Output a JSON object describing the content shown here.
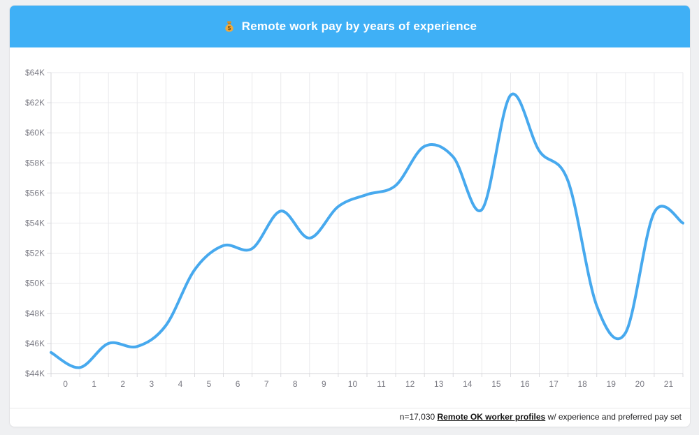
{
  "header": {
    "title": "Remote work pay by years of experience",
    "icon_char": "💰",
    "background": "#3fb0f6",
    "text_color": "#ffffff"
  },
  "footer": {
    "prefix": "n=17,030 ",
    "link_text": "Remote OK worker profiles",
    "suffix": " w/ experience and preferred pay set"
  },
  "chart_data": {
    "type": "line",
    "title": "Remote work pay by years of experience",
    "xlabel": "",
    "ylabel": "",
    "categories": [
      0,
      1,
      2,
      3,
      4,
      5,
      6,
      7,
      8,
      9,
      10,
      11,
      12,
      13,
      14,
      15,
      16,
      17,
      18,
      19,
      20,
      21
    ],
    "x_tick_labels": [
      "0",
      "1",
      "2",
      "3",
      "4",
      "5",
      "6",
      "7",
      "8",
      "9",
      "10",
      "11",
      "12",
      "13",
      "14",
      "15",
      "16",
      "17",
      "18",
      "19",
      "20",
      "21"
    ],
    "y_tick_labels": [
      "$44K",
      "$46K",
      "$48K",
      "$50K",
      "$52K",
      "$54K",
      "$56K",
      "$58K",
      "$60K",
      "$62K",
      "$64K"
    ],
    "ylim_usd": [
      44000,
      64000
    ],
    "y_step_usd": 2000,
    "series": [
      {
        "name": "preferred yearly pay",
        "values_usd": [
          45400,
          44400,
          46000,
          45800,
          47200,
          50900,
          52500,
          52300,
          54800,
          53000,
          55100,
          55900,
          56500,
          59100,
          58400,
          54900,
          62500,
          58800,
          56800,
          48500,
          46700,
          54700
        ],
        "curve_end_value_usd": 54000
      }
    ],
    "grid": true,
    "legend": false,
    "smooth": true,
    "line_color": "#47a9ee"
  }
}
